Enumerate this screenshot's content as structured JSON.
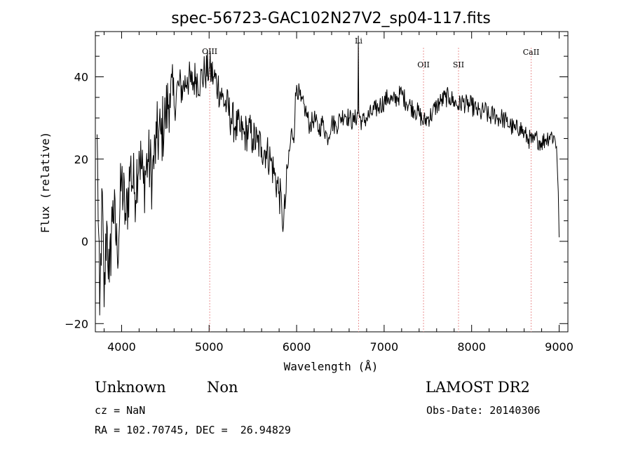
{
  "chart_data": {
    "type": "line",
    "title": "spec-56723-GAC102N27V2_sp04-117.fits",
    "xlabel": "Wavelength (Å)",
    "ylabel": "Flux (relative)",
    "xlim": [
      3700,
      9100
    ],
    "ylim": [
      -22,
      51
    ],
    "xticks": [
      4000,
      5000,
      6000,
      7000,
      8000,
      9000
    ],
    "yticks": [
      -20,
      0,
      20,
      40
    ],
    "grid": false,
    "lines": [
      {
        "label": "OIII",
        "x": 5007
      },
      {
        "label": "Li",
        "x": 6708
      },
      {
        "label": "OII",
        "x": 7450
      },
      {
        "label": "SII",
        "x": 7850
      },
      {
        "label": "CaII",
        "x": 8680
      }
    ],
    "series": [
      {
        "x": [
          3720,
          3750,
          3780,
          3800,
          3830,
          3860,
          3900,
          3950,
          4000,
          4050,
          4100,
          4150,
          4200,
          4250,
          4300,
          4350,
          4400,
          4450,
          4500,
          4550,
          4600,
          4650,
          4700,
          4750,
          4800,
          4850,
          4900,
          4950,
          5000,
          5050,
          5100,
          5150,
          5200,
          5250,
          5300,
          5350,
          5400,
          5450,
          5500,
          5550,
          5600,
          5650,
          5700,
          5750,
          5800,
          5830,
          5850,
          5880,
          5900,
          5930,
          5950,
          5980,
          6000,
          6050,
          6100,
          6150,
          6200,
          6250,
          6300,
          6350,
          6400,
          6450,
          6500,
          6550,
          6600,
          6650,
          6700,
          6705,
          6710,
          6720,
          6750,
          6800,
          6850,
          6900,
          6950,
          7000,
          7050,
          7100,
          7150,
          7200,
          7250,
          7300,
          7350,
          7400,
          7450,
          7500,
          7550,
          7600,
          7650,
          7700,
          7750,
          7800,
          7850,
          7900,
          7950,
          8000,
          8050,
          8100,
          8150,
          8200,
          8250,
          8300,
          8350,
          8400,
          8450,
          8500,
          8550,
          8600,
          8650,
          8700,
          8750,
          8800,
          8850,
          8900,
          8950,
          8970,
          8990,
          9000
        ],
        "y": [
          26,
          -18,
          12,
          -16,
          5,
          -10,
          10,
          -3,
          15,
          5,
          18,
          12,
          22,
          14,
          20,
          16,
          25,
          26,
          30,
          36,
          33,
          38,
          37,
          40,
          38,
          40,
          39,
          41,
          42,
          40,
          38,
          35,
          33,
          30,
          28,
          27,
          26,
          27,
          25,
          24,
          23,
          22,
          20,
          16,
          12,
          8,
          4,
          12,
          18,
          24,
          26,
          30,
          38,
          34,
          32,
          28,
          30,
          27,
          29,
          25,
          29,
          28,
          30,
          31,
          30,
          29,
          31,
          50,
          32,
          30,
          29,
          30,
          31,
          32,
          33,
          34,
          35,
          34,
          35,
          36,
          34,
          33,
          32,
          31,
          29,
          30,
          31,
          33,
          34,
          35,
          35,
          34,
          33,
          34,
          33,
          33,
          32,
          31,
          32,
          30,
          31,
          30,
          30,
          29,
          28,
          27,
          28,
          26,
          25,
          24,
          25,
          24,
          25,
          26,
          25,
          23,
          12,
          1
        ]
      }
    ]
  },
  "info": {
    "class_label": "Unknown",
    "subclass_label": "Non",
    "survey": "LAMOST DR2",
    "cz": "cz = NaN",
    "obs_date": "Obs-Date: 20140306",
    "radec": "RA = 102.70745, DEC =  26.94829"
  }
}
